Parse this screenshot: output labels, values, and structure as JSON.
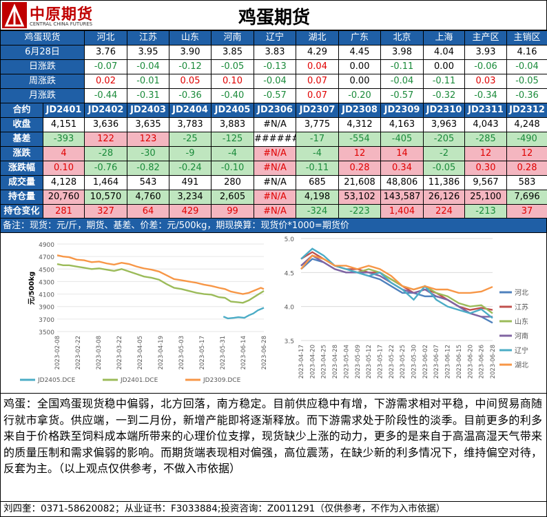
{
  "header": {
    "logo_cn": "中原期货",
    "logo_en": "CENTRAL CHINA FUTURES",
    "title": "鸡蛋期货"
  },
  "spot": {
    "head": "鸡蛋现货",
    "regions": [
      "河北",
      "江苏",
      "山东",
      "河南",
      "辽宁",
      "湖北",
      "广东",
      "北京",
      "上海",
      "主产区",
      "主销区"
    ],
    "rows": [
      {
        "label": "6月28日",
        "values": [
          "3.76",
          "3.95",
          "3.90",
          "3.85",
          "3.83",
          "4.29",
          "4.45",
          "3.98",
          "4.04",
          "3.93",
          "4.16"
        ],
        "colors": [
          "k",
          "k",
          "k",
          "k",
          "k",
          "k",
          "k",
          "k",
          "k",
          "k",
          "k"
        ]
      },
      {
        "label": "日涨跌",
        "values": [
          "-0.07",
          "-0.04",
          "-0.12",
          "-0.05",
          "-0.13",
          "0.04",
          "0.00",
          "-0.11",
          "0.00",
          "-0.06",
          "-0.04"
        ],
        "colors": [
          "g",
          "g",
          "g",
          "g",
          "g",
          "r",
          "k",
          "g",
          "k",
          "g",
          "g"
        ]
      },
      {
        "label": "周涨跌",
        "values": [
          "0.02",
          "-0.01",
          "0.05",
          "0.10",
          "-0.04",
          "0.07",
          "0.00",
          "-0.04",
          "-0.11",
          "0.03",
          "-0.05"
        ],
        "colors": [
          "r",
          "g",
          "r",
          "r",
          "g",
          "r",
          "k",
          "g",
          "g",
          "r",
          "g"
        ]
      },
      {
        "label": "月涨跌",
        "values": [
          "-0.44",
          "-0.31",
          "-0.36",
          "-0.40",
          "-0.57",
          "0.07",
          "-0.20",
          "-0.57",
          "-0.32",
          "-0.34",
          "-0.36"
        ],
        "colors": [
          "g",
          "g",
          "g",
          "g",
          "g",
          "r",
          "g",
          "g",
          "g",
          "g",
          "g"
        ]
      }
    ]
  },
  "futures": {
    "head": "合约",
    "contracts": [
      "JD2401",
      "JD2402",
      "JD2403",
      "JD2404",
      "JD2405",
      "JD2306",
      "JD2307",
      "JD2308",
      "JD2309",
      "JD2310",
      "JD2311",
      "JD2312"
    ],
    "rows": [
      {
        "label": "收盘",
        "values": [
          "4,151",
          "3,636",
          "3,635",
          "3,783",
          "3,883",
          "#N/A",
          "3,775",
          "4,312",
          "4,163",
          "3,963",
          "4,043",
          "4,248"
        ],
        "styles": [
          "",
          "",
          "",
          "",
          "",
          "",
          "",
          "",
          "",
          "",
          "",
          ""
        ]
      },
      {
        "label": "基差",
        "values": [
          "-393",
          "122",
          "123",
          "-25",
          "-125",
          "######",
          "-17",
          "-554",
          "-405",
          "-205",
          "-285",
          "-490"
        ],
        "styles": [
          "gb",
          "pb",
          "pb",
          "gb",
          "gb",
          "",
          "gb",
          "gb",
          "gb",
          "gb",
          "gb",
          "gb"
        ]
      },
      {
        "label": "涨跌",
        "values": [
          "4",
          "-28",
          "-30",
          "-9",
          "-4",
          "#N/A",
          "-4",
          "12",
          "14",
          "-2",
          "12",
          "12"
        ],
        "styles": [
          "pb",
          "gb",
          "gb",
          "gb",
          "gb",
          "pb",
          "gb",
          "pb",
          "pb",
          "gb",
          "pb",
          "pb"
        ]
      },
      {
        "label": "涨跌幅",
        "values": [
          "0.10",
          "-0.76",
          "-0.82",
          "-0.24",
          "-0.10",
          "#N/A",
          "-0.11",
          "0.28",
          "0.34",
          "-0.05",
          "0.30",
          "0.28"
        ],
        "styles": [
          "pb",
          "gb",
          "gb",
          "gb",
          "gb",
          "pb",
          "gb",
          "pb",
          "pb",
          "gb",
          "pb",
          "pb"
        ]
      },
      {
        "label": "成交量",
        "values": [
          "4,128",
          "1,464",
          "543",
          "491",
          "280",
          "#N/A",
          "685",
          "21,608",
          "48,806",
          "11,386",
          "9,567",
          "583"
        ],
        "styles": [
          "",
          "",
          "",
          "",
          "",
          "",
          "",
          "",
          "",
          "",
          "",
          ""
        ]
      },
      {
        "label": "持仓量",
        "values": [
          "20,760",
          "10,570",
          "4,760",
          "3,234",
          "2,605",
          "#N/A",
          "4,198",
          "53,102",
          "143,587",
          "26,126",
          "25,100",
          "7,696"
        ],
        "styles": [
          "pb",
          "gb",
          "gb",
          "gb",
          "gb",
          "pb",
          "gb",
          "pb",
          "pb",
          "pb",
          "pb",
          "gb"
        ]
      },
      {
        "label": "持仓变化",
        "values": [
          "281",
          "327",
          "64",
          "429",
          "99",
          "#N/A",
          "-324",
          "-223",
          "1,404",
          "224",
          "-213",
          "37"
        ],
        "styles": [
          "pb",
          "pb",
          "pb",
          "pb",
          "pb",
          "pb",
          "gb",
          "gb",
          "pb",
          "pb",
          "gb",
          "pb"
        ]
      }
    ]
  },
  "note": "备注：现货：元/斤，期货、基差、价差：元/500kg，期现换算：现货价*1000=期货价",
  "chart_data": [
    {
      "type": "line",
      "ylabel": "元/500kg",
      "ylim": [
        3500,
        4900
      ],
      "yticks": [
        "4900",
        "4700",
        "4500",
        "4300",
        "4100",
        "3900",
        "3700",
        "3500"
      ],
      "xticks": [
        "2023-02-08",
        "2023-02-22",
        "2023-03-08",
        "2023-03-22",
        "2023-04-05",
        "2023-04-19",
        "2023-05-03",
        "2023-05-17",
        "2023-05-31",
        "2023-06-14",
        "2023-06-28"
      ],
      "series": [
        {
          "name": "JD2405.DCE",
          "color": "#4bacc6",
          "x": [
            111,
            114,
            118,
            121,
            125,
            128,
            131,
            134,
            138
          ],
          "values": [
            3740,
            3710,
            3720,
            3730,
            3720,
            3760,
            3790,
            3840,
            3880
          ]
        },
        {
          "name": "JD2401.DCE",
          "color": "#9bbb59",
          "x": [
            0,
            4,
            8,
            13,
            18,
            23,
            28,
            33,
            38,
            43,
            48,
            53,
            58,
            63,
            68,
            73,
            78,
            83,
            88,
            93,
            98,
            103,
            108,
            112,
            116,
            120,
            124,
            128,
            132,
            136,
            138
          ],
          "values": [
            4580,
            4560,
            4560,
            4540,
            4520,
            4500,
            4510,
            4490,
            4470,
            4500,
            4460,
            4420,
            4380,
            4360,
            4330,
            4260,
            4200,
            4180,
            4150,
            4120,
            4100,
            4090,
            4050,
            4040,
            3980,
            3970,
            3960,
            4000,
            4060,
            4120,
            4150
          ]
        },
        {
          "name": "JD2309.DCE",
          "color": "#f79646",
          "x": [
            0,
            4,
            8,
            13,
            18,
            23,
            28,
            33,
            38,
            43,
            48,
            53,
            58,
            63,
            68,
            73,
            78,
            83,
            88,
            93,
            98,
            103,
            108,
            112,
            116,
            120,
            124,
            128,
            132,
            136,
            138
          ],
          "values": [
            4720,
            4700,
            4690,
            4650,
            4640,
            4610,
            4620,
            4590,
            4570,
            4600,
            4580,
            4540,
            4510,
            4490,
            4460,
            4400,
            4340,
            4320,
            4300,
            4280,
            4250,
            4230,
            4200,
            4180,
            4140,
            4120,
            4100,
            4120,
            4160,
            4200,
            4180
          ]
        }
      ]
    },
    {
      "type": "line",
      "ylim": [
        3.5,
        5.0
      ],
      "yticks": [
        "5.0",
        "4.5",
        "4.0",
        "3.5"
      ],
      "xticks": [
        "2023-04-17",
        "2023-04-20",
        "2023-04-25",
        "2023-04-28",
        "2023-05-04",
        "2023-05-09",
        "2023-05-12",
        "2023-05-17",
        "2023-05-22",
        "2023-05-25",
        "2023-05-30",
        "2023-06-02",
        "2023-06-07",
        "2023-06-12",
        "2023-06-15",
        "2023-06-20",
        "2023-06-26",
        "2023-06-28"
      ],
      "series": [
        {
          "name": "河北",
          "color": "#4f81bd",
          "values": [
            4.55,
            4.7,
            4.65,
            4.55,
            4.5,
            4.5,
            4.45,
            4.4,
            4.3,
            4.2,
            4.2,
            4.15,
            4.15,
            4.1,
            4.0,
            3.9,
            3.85,
            3.76
          ]
        },
        {
          "name": "江苏",
          "color": "#c0504d",
          "values": [
            4.7,
            4.8,
            4.7,
            4.6,
            4.55,
            4.55,
            4.5,
            4.5,
            4.4,
            4.3,
            4.2,
            4.25,
            4.2,
            4.1,
            4.0,
            3.95,
            3.98,
            3.95
          ]
        },
        {
          "name": "山东",
          "color": "#9bbb59",
          "values": [
            4.6,
            4.75,
            4.7,
            4.6,
            4.55,
            4.5,
            4.55,
            4.5,
            4.4,
            4.3,
            4.25,
            4.3,
            4.2,
            4.15,
            4.05,
            4.0,
            4.02,
            3.9
          ]
        },
        {
          "name": "河南",
          "color": "#8064a2",
          "values": [
            4.6,
            4.75,
            4.65,
            4.55,
            4.5,
            4.5,
            4.5,
            4.45,
            4.35,
            4.25,
            4.2,
            4.25,
            4.15,
            4.1,
            4.0,
            3.9,
            3.85,
            3.85
          ]
        },
        {
          "name": "辽宁",
          "color": "#4bacc6",
          "values": [
            4.7,
            4.85,
            4.75,
            4.6,
            4.55,
            4.5,
            4.45,
            4.5,
            4.35,
            4.25,
            4.1,
            4.3,
            4.1,
            4.0,
            3.95,
            3.9,
            3.96,
            3.83
          ]
        },
        {
          "name": "湖北",
          "color": "#f79646",
          "values": [
            4.55,
            4.75,
            4.7,
            4.6,
            4.6,
            4.55,
            4.6,
            4.55,
            4.45,
            4.3,
            4.25,
            4.3,
            4.25,
            4.25,
            4.2,
            4.2,
            4.22,
            4.29
          ]
        }
      ]
    }
  ],
  "commentary": "鸡蛋：全国鸡蛋现货稳中偏弱，北方回落，南方稳定。目前供应稳中有增，下游需求相对平稳，中间贸易商随行就市拿货。供应端，一到二月份，新增产能即将逐渐释放。而下游需求处于阶段性的淡季。目前更多的利多来自于价格跌至饲料成本端所带来的心理价位支撑，现货缺少上涨的动力，更多的是来自于高温高湿天气带来的质量压制和需求偏弱的影响。而期货端表现相对偏强，高位震荡，在缺少新的利多情况下，维持偏空对待，反套为主。（以上观点仅供参考，不做入市依据）",
  "footer": "刘四奎：0371-58620082；从业证书：F3033884;投资咨询：Z0011291（仅供参考，不作为入市依据）"
}
